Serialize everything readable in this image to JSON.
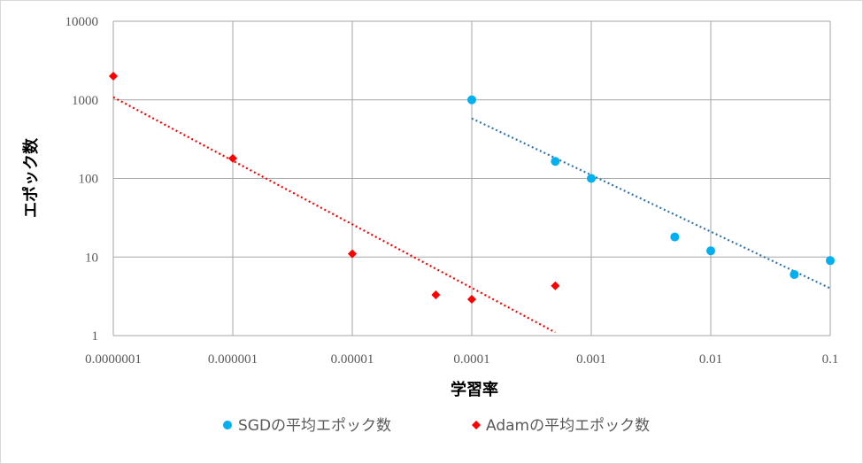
{
  "chart_data": {
    "type": "scatter",
    "xlabel": "学習率",
    "ylabel": "エポック数",
    "x_scale": "log",
    "y_scale": "log",
    "xlim": [
      1e-07,
      0.1
    ],
    "ylim": [
      1,
      10000
    ],
    "x_ticks": [
      1e-07,
      1e-06,
      1e-05,
      0.0001,
      0.001,
      0.01,
      0.1
    ],
    "x_tick_labels": [
      "0.0000001",
      "0.000001",
      "0.00001",
      "0.0001",
      "0.001",
      "0.01",
      "0.1"
    ],
    "y_ticks": [
      1,
      10,
      100,
      1000,
      10000
    ],
    "y_tick_labels": [
      "1",
      "10",
      "100",
      "1000",
      "10000"
    ],
    "grid": true,
    "legend_position": "bottom",
    "series": [
      {
        "name": "SGDの平均エポック数",
        "marker": "circle",
        "color": "#00b0f0",
        "points": [
          {
            "x": 0.0001,
            "y": 1000
          },
          {
            "x": 0.0005,
            "y": 165
          },
          {
            "x": 0.001,
            "y": 100
          },
          {
            "x": 0.005,
            "y": 18
          },
          {
            "x": 0.01,
            "y": 12
          },
          {
            "x": 0.05,
            "y": 6
          },
          {
            "x": 0.1,
            "y": 9
          }
        ],
        "trendline": {
          "type": "power",
          "color": "#2e75b6",
          "from": {
            "x": 0.0001,
            "y": 580
          },
          "to": {
            "x": 0.1,
            "y": 4
          }
        }
      },
      {
        "name": "Adamの平均エポック数",
        "marker": "diamond",
        "color": "#ff0000",
        "points": [
          {
            "x": 1e-07,
            "y": 2000
          },
          {
            "x": 1e-06,
            "y": 180
          },
          {
            "x": 1e-05,
            "y": 11
          },
          {
            "x": 5e-05,
            "y": 3.3
          },
          {
            "x": 0.0001,
            "y": 2.9
          },
          {
            "x": 0.0005,
            "y": 4.3
          }
        ],
        "trendline": {
          "type": "power",
          "color": "#ff0000",
          "from": {
            "x": 1e-07,
            "y": 1080
          },
          "to": {
            "x": 0.0005,
            "y": 1.1
          }
        }
      }
    ]
  }
}
